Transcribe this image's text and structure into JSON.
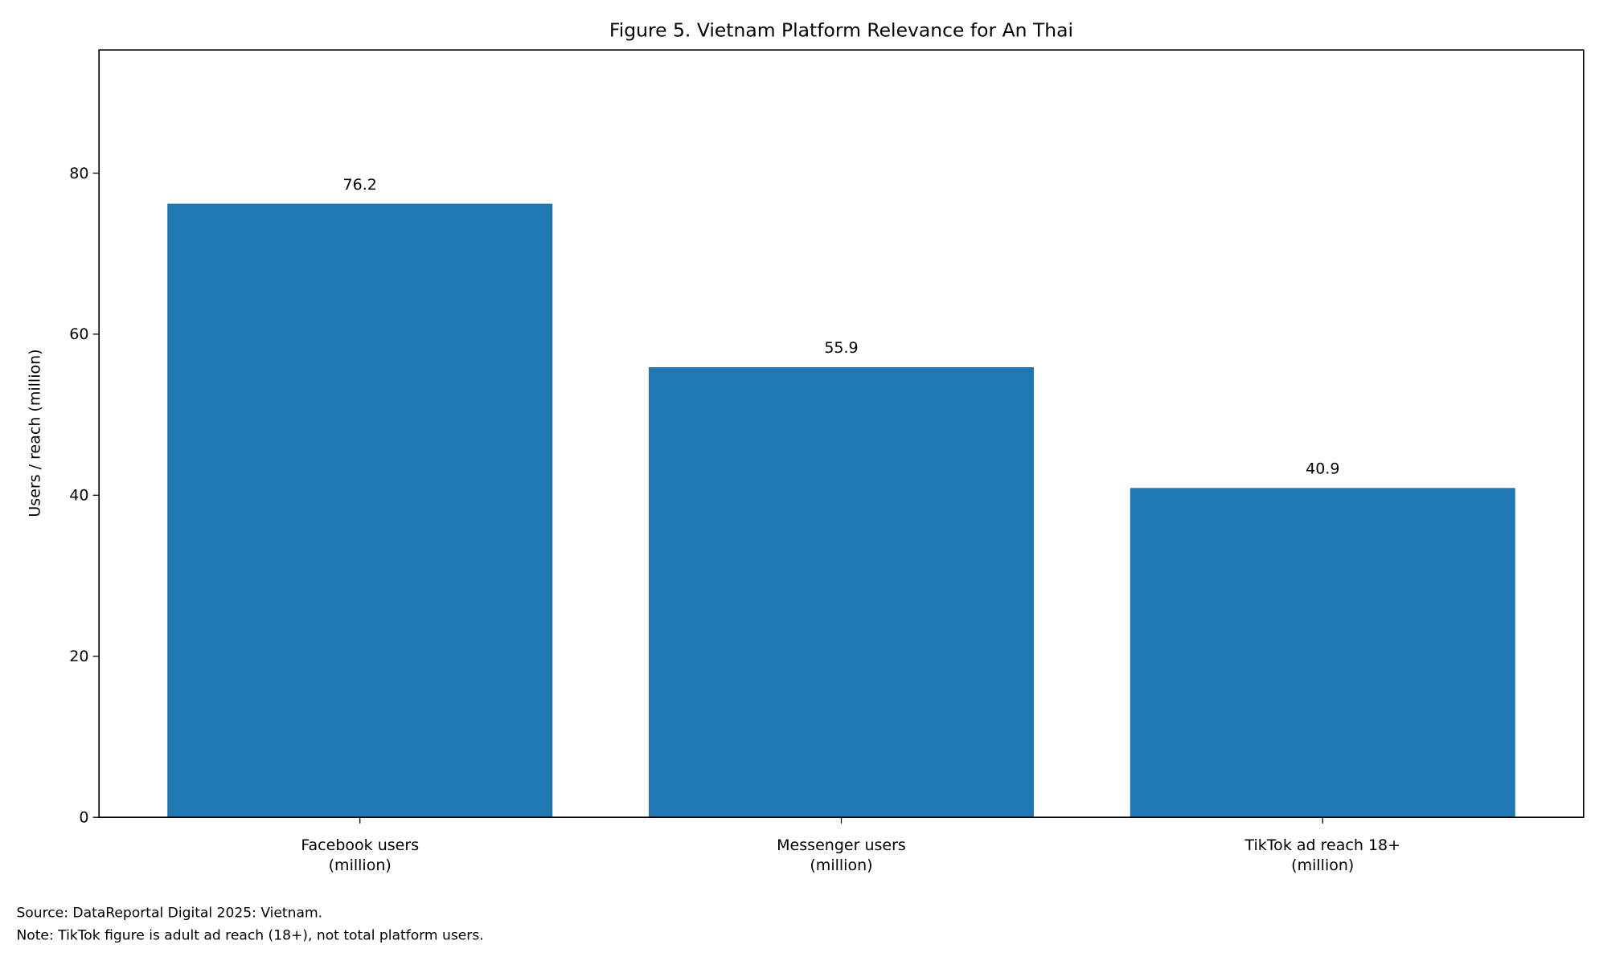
{
  "chart_data": {
    "type": "bar",
    "title": "Figure 5. Vietnam Platform Relevance for An Thai",
    "xlabel": "",
    "ylabel": "Users / reach (million)",
    "categories": [
      "Facebook users\n(million)",
      "Messenger users\n(million)",
      "TikTok ad reach 18+\n(million)"
    ],
    "values": [
      76.2,
      55.9,
      40.9
    ],
    "data_labels": [
      "76.2",
      "55.9",
      "40.9"
    ],
    "ylim": [
      0,
      95.3
    ],
    "yticks": [
      0,
      20,
      40,
      60,
      80
    ],
    "grid": false,
    "bar_color": "#1f77b4"
  },
  "footnotes": [
    "Source: DataReportal Digital 2025: Vietnam.",
    "Note: TikTok figure is adult ad reach (18+), not total platform users."
  ]
}
